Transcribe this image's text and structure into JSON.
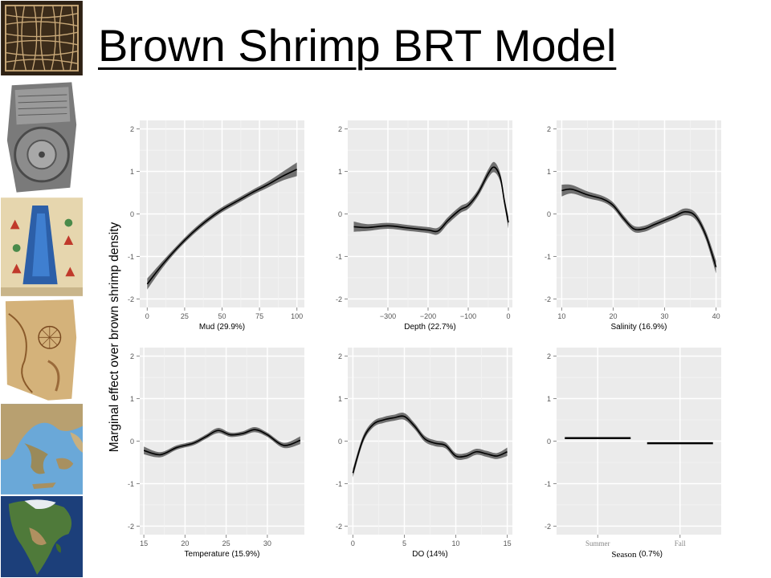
{
  "slide": {
    "title": "Brown Shrimp BRT Model",
    "ylabel": "Marginal effect over brown shrimp density"
  },
  "thumbnails": [
    {
      "name": "grid-map-thumbnail",
      "colors": [
        "#3a2a18",
        "#c8a878"
      ]
    },
    {
      "name": "babylonian-tablet-thumbnail",
      "colors": [
        "#555555",
        "#b8b8b8"
      ]
    },
    {
      "name": "medieval-map-thumbnail",
      "colors": [
        "#2c5fa8",
        "#e8d8b0"
      ]
    },
    {
      "name": "piri-reis-map-thumbnail",
      "colors": [
        "#c79a52",
        "#e8cf98"
      ]
    },
    {
      "name": "greece-relief-map-thumbnail",
      "colors": [
        "#6aa8d8",
        "#b8a070"
      ]
    },
    {
      "name": "north-america-satellite-thumbnail",
      "colors": [
        "#1c3f7a",
        "#4f7a3a"
      ]
    }
  ],
  "chart_data": [
    {
      "type": "line",
      "xlabel": "Mud (29.9%)",
      "xlim": [
        -5,
        105
      ],
      "ylim": [
        -2.2,
        2.2
      ],
      "xticks": [
        0,
        25,
        50,
        75,
        100
      ],
      "yticks": [
        -2,
        -1,
        0,
        1,
        2
      ],
      "grid": true,
      "series": [
        {
          "x": [
            0,
            10,
            20,
            30,
            40,
            50,
            60,
            70,
            80,
            90,
            100
          ],
          "y": [
            -1.65,
            -1.2,
            -0.8,
            -0.45,
            -0.15,
            0.1,
            0.3,
            0.5,
            0.68,
            0.88,
            1.05
          ],
          "band": [
            0.13,
            0.08,
            0.06,
            0.06,
            0.06,
            0.06,
            0.06,
            0.06,
            0.07,
            0.1,
            0.16
          ]
        }
      ]
    },
    {
      "type": "line",
      "xlabel": "Depth (22.7%)",
      "xlim": [
        -400,
        10
      ],
      "ylim": [
        -2.2,
        2.2
      ],
      "xticks": [
        -300,
        -200,
        -100,
        0
      ],
      "xticklabels": [
        "−300",
        "−200",
        "−100",
        "0"
      ],
      "yticks": [
        -2,
        -1,
        0,
        1,
        2
      ],
      "grid": true,
      "series": [
        {
          "x": [
            -385,
            -350,
            -300,
            -250,
            -200,
            -175,
            -150,
            -120,
            -100,
            -75,
            -50,
            -35,
            -20,
            -10,
            0
          ],
          "y": [
            -0.3,
            -0.32,
            -0.28,
            -0.33,
            -0.38,
            -0.4,
            -0.15,
            0.1,
            0.2,
            0.5,
            0.95,
            1.1,
            0.85,
            0.3,
            -0.2
          ],
          "band": [
            0.12,
            0.08,
            0.07,
            0.07,
            0.07,
            0.08,
            0.08,
            0.08,
            0.08,
            0.08,
            0.1,
            0.12,
            0.1,
            0.1,
            0.14
          ]
        }
      ]
    },
    {
      "type": "line",
      "xlabel": "Salinity (16.9%)",
      "xlim": [
        9,
        41
      ],
      "ylim": [
        -2.2,
        2.2
      ],
      "xticks": [
        10,
        20,
        30,
        40
      ],
      "yticks": [
        -2,
        -1,
        0,
        1,
        2
      ],
      "grid": true,
      "series": [
        {
          "x": [
            10,
            12,
            15,
            18,
            20,
            22,
            24,
            26,
            28,
            30,
            32,
            34,
            36,
            38,
            40
          ],
          "y": [
            0.55,
            0.58,
            0.45,
            0.35,
            0.2,
            -0.1,
            -0.35,
            -0.35,
            -0.25,
            -0.15,
            -0.05,
            0.05,
            -0.05,
            -0.5,
            -1.25
          ],
          "band": [
            0.14,
            0.1,
            0.08,
            0.07,
            0.07,
            0.07,
            0.07,
            0.07,
            0.07,
            0.07,
            0.07,
            0.08,
            0.08,
            0.1,
            0.15
          ]
        }
      ]
    },
    {
      "type": "line",
      "xlabel": "Temperature (15.9%)",
      "xlim": [
        14.5,
        34.5
      ],
      "ylim": [
        -2.2,
        2.2
      ],
      "xticks": [
        15,
        20,
        25,
        30
      ],
      "yticks": [
        -2,
        -1,
        0,
        1,
        2
      ],
      "grid": true,
      "series": [
        {
          "x": [
            15,
            17,
            19,
            21,
            22.5,
            24,
            25.5,
            27,
            28.5,
            30,
            32,
            34
          ],
          "y": [
            -0.22,
            -0.32,
            -0.15,
            -0.05,
            0.1,
            0.25,
            0.15,
            0.18,
            0.27,
            0.15,
            -0.1,
            0.02
          ],
          "band": [
            0.09,
            0.06,
            0.05,
            0.05,
            0.05,
            0.06,
            0.05,
            0.05,
            0.06,
            0.05,
            0.06,
            0.09
          ]
        }
      ]
    },
    {
      "type": "line",
      "xlabel": "DO (14%)",
      "xlim": [
        -0.5,
        15.5
      ],
      "ylim": [
        -2.2,
        2.2
      ],
      "xticks": [
        0,
        5,
        10,
        15
      ],
      "yticks": [
        -2,
        -1,
        0,
        1,
        2
      ],
      "grid": true,
      "series": [
        {
          "x": [
            0,
            1,
            2,
            3,
            4,
            5,
            6,
            7,
            8,
            9,
            10,
            11,
            12,
            13,
            14,
            15
          ],
          "y": [
            -0.75,
            0.05,
            0.4,
            0.5,
            0.55,
            0.58,
            0.35,
            0.05,
            -0.05,
            -0.1,
            -0.35,
            -0.35,
            -0.25,
            -0.3,
            -0.35,
            -0.25
          ],
          "band": [
            0.1,
            0.08,
            0.07,
            0.07,
            0.07,
            0.08,
            0.07,
            0.07,
            0.07,
            0.07,
            0.07,
            0.07,
            0.07,
            0.07,
            0.07,
            0.1
          ]
        }
      ]
    },
    {
      "type": "bar",
      "xlabel_season": "Season",
      "xlabel_pct": "(0.7%)",
      "categories": [
        "Summer",
        "Fall"
      ],
      "values": [
        0.07,
        -0.05
      ],
      "ylim": [
        -2.2,
        2.2
      ],
      "yticks": [
        -2,
        -1,
        0,
        1,
        2
      ],
      "grid": true
    }
  ]
}
